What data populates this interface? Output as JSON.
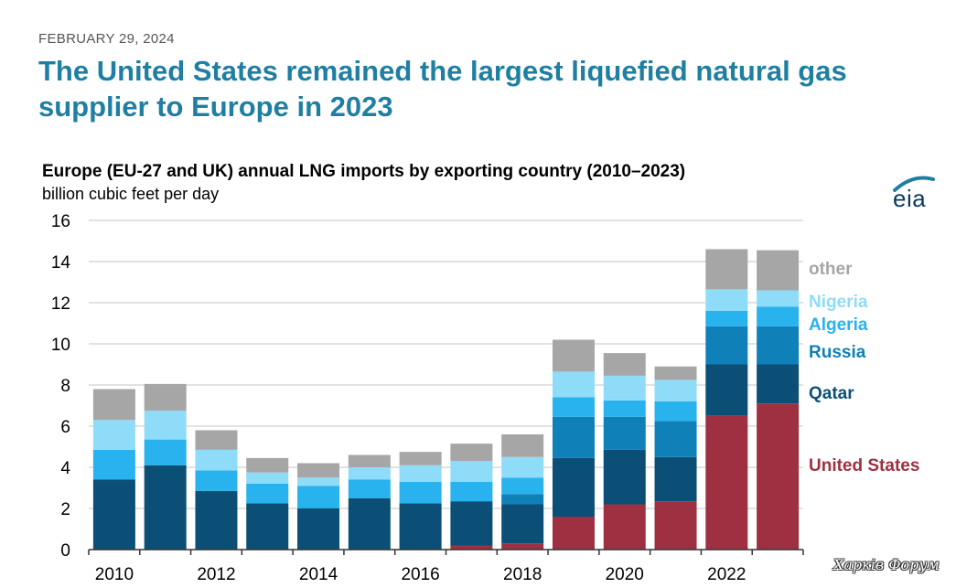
{
  "header": {
    "date": "FEBRUARY 29, 2024",
    "headline": "The United States remained the largest liquefied natural gas supplier to Europe in 2023"
  },
  "logo": {
    "text": "eia",
    "icon": "eia-swoosh-icon",
    "color": "#1f7fa3"
  },
  "watermark": {
    "text": "Харків Форум"
  },
  "chart_data": {
    "type": "bar",
    "stacked": true,
    "title": "Europe (EU-27 and UK) annual LNG imports by exporting country (2010–2023)",
    "ylabel": "billion cubic feet per day",
    "xlabel": "",
    "ylim": [
      0,
      16
    ],
    "yticks": [
      "0",
      "2",
      "4",
      "6",
      "8",
      "10",
      "12",
      "14",
      "16"
    ],
    "categories": [
      "2010",
      "2011",
      "2012",
      "2013",
      "2014",
      "2015",
      "2016",
      "2017",
      "2018",
      "2019",
      "2020",
      "2021",
      "2022",
      "2023"
    ],
    "xtick_labels": [
      "2010",
      "",
      "2012",
      "",
      "2014",
      "",
      "2016",
      "",
      "2018",
      "",
      "2020",
      "",
      "2022",
      ""
    ],
    "grid": true,
    "series": [
      {
        "name": "United States",
        "color": "#9e3041",
        "values": [
          0,
          0,
          0,
          0,
          0,
          0,
          0,
          0.2,
          0.3,
          1.6,
          2.2,
          2.35,
          6.5,
          7.1
        ]
      },
      {
        "name": "Qatar",
        "color": "#0b4f77",
        "values": [
          3.4,
          4.1,
          2.85,
          2.25,
          2.0,
          2.5,
          2.25,
          2.15,
          1.9,
          2.85,
          2.65,
          2.15,
          2.5,
          1.9
        ]
      },
      {
        "name": "Russia",
        "color": "#0f80b8",
        "values": [
          0,
          0,
          0,
          0,
          0,
          0,
          0,
          0,
          0.5,
          2.0,
          1.6,
          1.75,
          1.85,
          1.85
        ]
      },
      {
        "name": "Algeria",
        "color": "#28b2ee",
        "values": [
          1.45,
          1.25,
          1.0,
          0.95,
          1.1,
          0.9,
          1.05,
          0.95,
          0.8,
          0.95,
          0.8,
          0.95,
          0.75,
          0.95
        ]
      },
      {
        "name": "Nigeria",
        "color": "#8fdcf8",
        "values": [
          1.45,
          1.4,
          1.0,
          0.55,
          0.4,
          0.6,
          0.8,
          1.0,
          1.0,
          1.25,
          1.2,
          1.05,
          1.05,
          0.8
        ]
      },
      {
        "name": "other",
        "color": "#a6a6a6",
        "values": [
          1.5,
          1.3,
          0.95,
          0.7,
          0.7,
          0.6,
          0.65,
          0.85,
          1.1,
          1.55,
          1.1,
          0.65,
          1.95,
          1.95
        ]
      }
    ],
    "legend_placement": "right",
    "legend": [
      {
        "name": "other",
        "color": "#a6a6a6"
      },
      {
        "name": "Nigeria",
        "color": "#8fdcf8"
      },
      {
        "name": "Algeria",
        "color": "#28b2ee"
      },
      {
        "name": "Russia",
        "color": "#0f80b8"
      },
      {
        "name": "Qatar",
        "color": "#0b4f77"
      },
      {
        "name": "United States",
        "color": "#9e3041"
      }
    ]
  }
}
